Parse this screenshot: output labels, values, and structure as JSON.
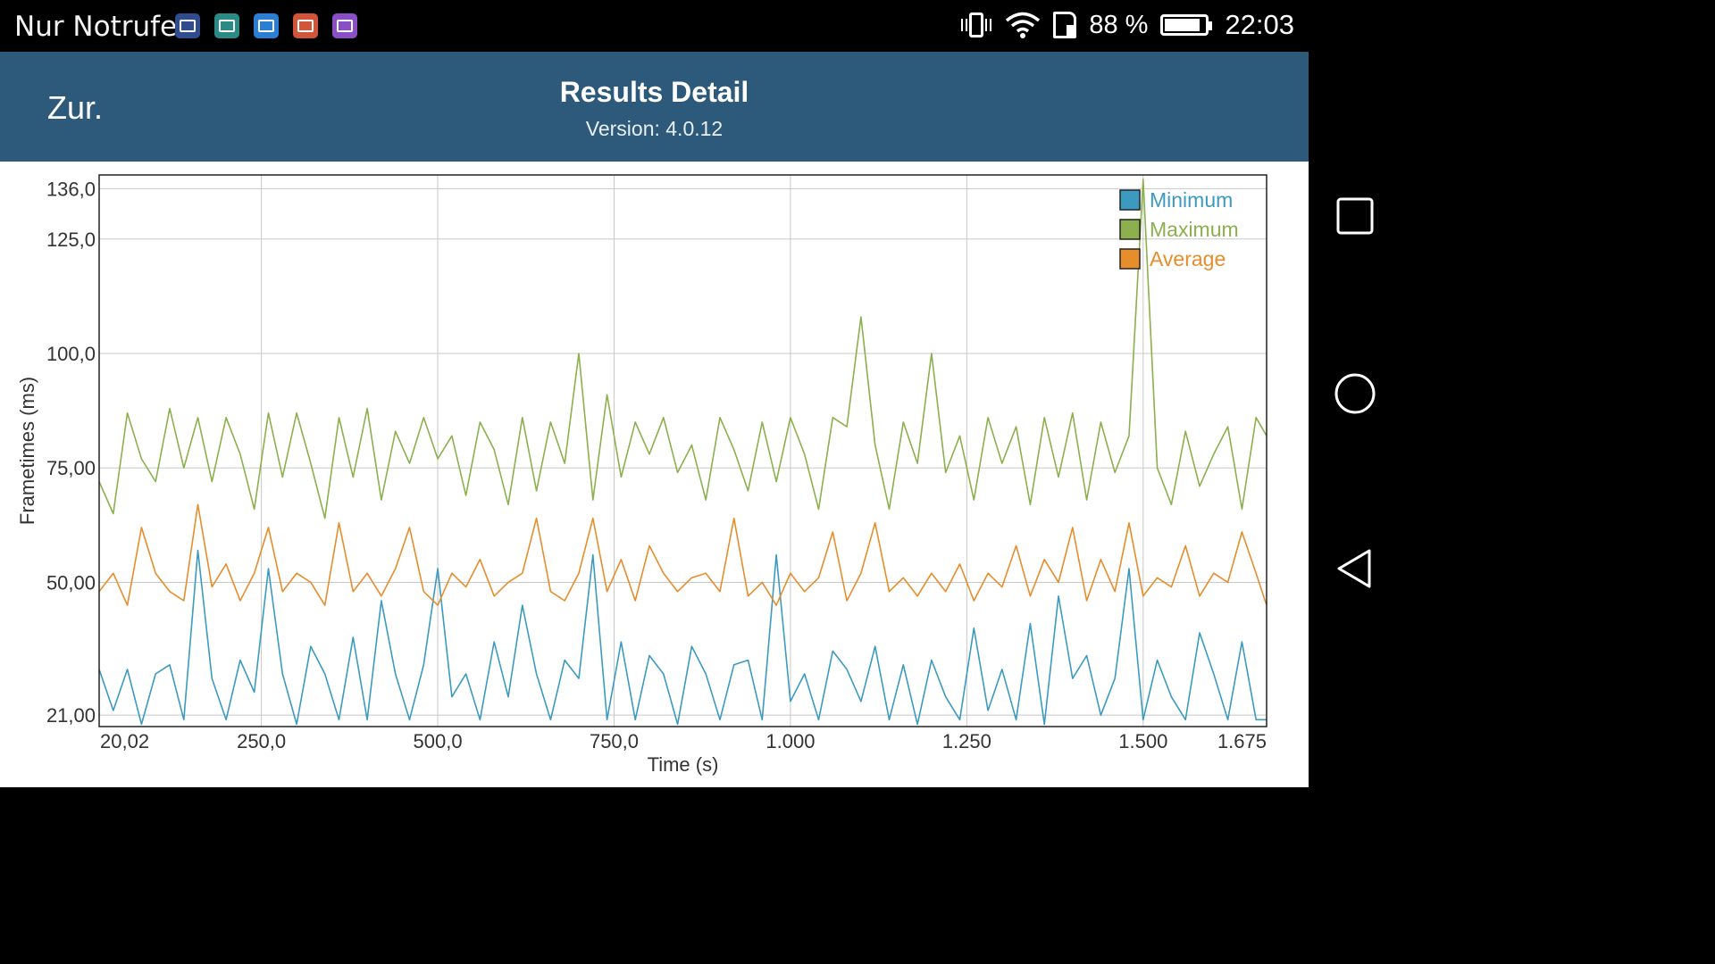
{
  "status_bar": {
    "carrier": "Nur Notrufe",
    "battery": "88 %",
    "battery_level": 0.88,
    "time": "22:03",
    "notification_icons": [
      {
        "name": "health-app-icon",
        "color": "#2f4c8f"
      },
      {
        "name": "gallery-app-icon",
        "color": "#2a8a86"
      },
      {
        "name": "dropbox-icon",
        "color": "#2a7fd4"
      },
      {
        "name": "screen-recorder-icon",
        "color": "#d2553a"
      },
      {
        "name": "keyboard-app-icon",
        "color": "#8a4fc4"
      }
    ]
  },
  "app_bar": {
    "back_label": "Zur.",
    "title": "Results Detail",
    "version": "Version: 4.0.12",
    "color": "#2d5a7b"
  },
  "chart_data": {
    "type": "line",
    "xlabel": "Time (s)",
    "ylabel": "Frametimes (ms)",
    "x_ticks": [
      {
        "value": 20.02,
        "label": "20,02"
      },
      {
        "value": 250,
        "label": "250,0"
      },
      {
        "value": 500,
        "label": "500,0"
      },
      {
        "value": 750,
        "label": "750,0"
      },
      {
        "value": 1000,
        "label": "1.000"
      },
      {
        "value": 1250,
        "label": "1.250"
      },
      {
        "value": 1500,
        "label": "1.500"
      },
      {
        "value": 1675,
        "label": "1.675"
      }
    ],
    "y_ticks": [
      {
        "value": 21,
        "label": "21,00"
      },
      {
        "value": 50,
        "label": "50,00"
      },
      {
        "value": 75,
        "label": "75,00"
      },
      {
        "value": 100,
        "label": "100,0"
      },
      {
        "value": 125,
        "label": "125,0"
      },
      {
        "value": 136,
        "label": "136,0"
      }
    ],
    "xlim": [
      20.02,
      1675
    ],
    "ylim": [
      18.5,
      139
    ],
    "grid": true,
    "legend_position": "top-right",
    "series": [
      {
        "name": "Minimum",
        "color": "#3c9ac0",
        "x": [
          20,
          40,
          60,
          80,
          100,
          120,
          140,
          160,
          180,
          200,
          220,
          240,
          260,
          280,
          300,
          320,
          340,
          360,
          380,
          400,
          420,
          440,
          460,
          480,
          500,
          520,
          540,
          560,
          580,
          600,
          620,
          640,
          660,
          680,
          700,
          720,
          740,
          760,
          780,
          800,
          820,
          840,
          860,
          880,
          900,
          920,
          940,
          960,
          980,
          1000,
          1020,
          1040,
          1060,
          1080,
          1100,
          1120,
          1140,
          1160,
          1180,
          1200,
          1220,
          1240,
          1260,
          1280,
          1300,
          1320,
          1340,
          1360,
          1380,
          1400,
          1420,
          1440,
          1460,
          1480,
          1500,
          1520,
          1540,
          1560,
          1580,
          1600,
          1620,
          1640,
          1660,
          1675
        ],
        "values": [
          31,
          22,
          31,
          19,
          30,
          32,
          20,
          57,
          29,
          20,
          33,
          26,
          53,
          30,
          19,
          36,
          30,
          20,
          38,
          20,
          46,
          30,
          20,
          32,
          53,
          25,
          30,
          20,
          37,
          25,
          45,
          30,
          20,
          33,
          29,
          56,
          20,
          37,
          20,
          34,
          30,
          19,
          36,
          30,
          20,
          32,
          33,
          20,
          56,
          24,
          30,
          20,
          35,
          31,
          24,
          36,
          20,
          32,
          19,
          33,
          25,
          20,
          40,
          22,
          31,
          20,
          41,
          19,
          47,
          29,
          34,
          21,
          29,
          53,
          20,
          33,
          25,
          20,
          39,
          30,
          20,
          37,
          20,
          20
        ]
      },
      {
        "name": "Maximum",
        "color": "#8bb04d",
        "x": [
          20,
          40,
          60,
          80,
          100,
          120,
          140,
          160,
          180,
          200,
          220,
          240,
          260,
          280,
          300,
          320,
          340,
          360,
          380,
          400,
          420,
          440,
          460,
          480,
          500,
          520,
          540,
          560,
          580,
          600,
          620,
          640,
          660,
          680,
          700,
          720,
          740,
          760,
          780,
          800,
          820,
          840,
          860,
          880,
          900,
          920,
          940,
          960,
          980,
          1000,
          1020,
          1040,
          1060,
          1080,
          1100,
          1120,
          1140,
          1160,
          1180,
          1200,
          1220,
          1240,
          1260,
          1280,
          1300,
          1320,
          1340,
          1360,
          1380,
          1400,
          1420,
          1440,
          1460,
          1480,
          1500,
          1520,
          1540,
          1560,
          1580,
          1600,
          1620,
          1640,
          1660,
          1675
        ],
        "values": [
          72,
          65,
          87,
          77,
          72,
          88,
          75,
          86,
          72,
          86,
          78,
          66,
          87,
          73,
          87,
          76,
          64,
          86,
          73,
          88,
          68,
          83,
          76,
          86,
          77,
          82,
          69,
          85,
          79,
          67,
          86,
          70,
          85,
          76,
          100,
          68,
          91,
          73,
          85,
          78,
          86,
          74,
          80,
          68,
          86,
          79,
          70,
          85,
          72,
          86,
          78,
          66,
          86,
          84,
          108,
          80,
          66,
          85,
          76,
          100,
          74,
          82,
          68,
          86,
          76,
          84,
          67,
          86,
          73,
          87,
          68,
          85,
          74,
          82,
          138,
          75,
          67,
          83,
          71,
          78,
          84,
          66,
          86,
          82
        ]
      },
      {
        "name": "Average",
        "color": "#e68d2c",
        "x": [
          20,
          40,
          60,
          80,
          100,
          120,
          140,
          160,
          180,
          200,
          220,
          240,
          260,
          280,
          300,
          320,
          340,
          360,
          380,
          400,
          420,
          440,
          460,
          480,
          500,
          520,
          540,
          560,
          580,
          600,
          620,
          640,
          660,
          680,
          700,
          720,
          740,
          760,
          780,
          800,
          820,
          840,
          860,
          880,
          900,
          920,
          940,
          960,
          980,
          1000,
          1020,
          1040,
          1060,
          1080,
          1100,
          1120,
          1140,
          1160,
          1180,
          1200,
          1220,
          1240,
          1260,
          1280,
          1300,
          1320,
          1340,
          1360,
          1380,
          1400,
          1420,
          1440,
          1460,
          1480,
          1500,
          1520,
          1540,
          1560,
          1580,
          1600,
          1620,
          1640,
          1660,
          1675
        ],
        "values": [
          48,
          52,
          45,
          62,
          52,
          48,
          46,
          67,
          49,
          54,
          46,
          52,
          62,
          48,
          52,
          50,
          45,
          63,
          48,
          52,
          47,
          53,
          62,
          48,
          45,
          52,
          49,
          55,
          47,
          50,
          52,
          64,
          48,
          46,
          52,
          64,
          48,
          55,
          46,
          58,
          52,
          48,
          51,
          52,
          48,
          64,
          47,
          50,
          45,
          52,
          48,
          51,
          61,
          46,
          52,
          63,
          48,
          51,
          47,
          52,
          48,
          54,
          46,
          52,
          49,
          58,
          47,
          55,
          50,
          62,
          46,
          55,
          48,
          63,
          47,
          51,
          49,
          58,
          47,
          52,
          50,
          61,
          52,
          45
        ]
      }
    ]
  }
}
